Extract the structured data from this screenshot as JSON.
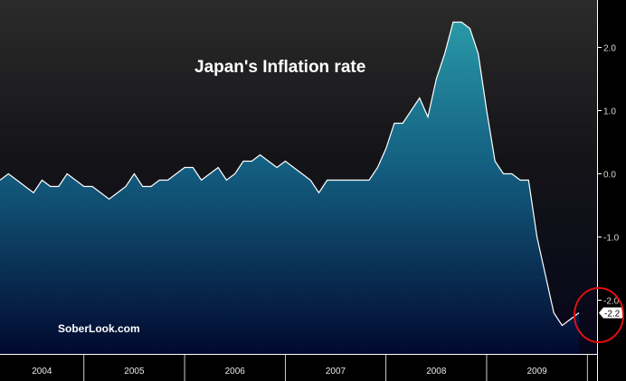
{
  "chart_data": {
    "type": "area",
    "title": "Japan's Inflation rate",
    "watermark": "SoberLook.com",
    "xlabel": "",
    "ylabel": "",
    "ylim": [
      -2.85,
      2.75
    ],
    "yticks": [
      {
        "value": 2.0,
        "label": "2.0"
      },
      {
        "value": 1.0,
        "label": "1.0"
      },
      {
        "value": 0.0,
        "label": "0.0"
      },
      {
        "value": -1.0,
        "label": "-1.0"
      },
      {
        "value": -2.0,
        "label": "-2.0"
      }
    ],
    "year_labels": [
      "2004",
      "2005",
      "2006",
      "2007",
      "2008",
      "2009"
    ],
    "last_value_label": "-2.2",
    "grid": false,
    "series": [
      {
        "values": [
          -0.1,
          0.0,
          -0.1,
          -0.2,
          -0.3,
          -0.1,
          -0.2,
          -0.2,
          0.0,
          -0.1,
          -0.2,
          -0.2,
          -0.3,
          -0.4,
          -0.3,
          -0.2,
          0.0,
          -0.2,
          -0.2,
          -0.1,
          -0.1,
          0.0,
          0.1,
          0.1,
          -0.1,
          0.0,
          0.1,
          -0.1,
          0.0,
          0.2,
          0.2,
          0.3,
          0.2,
          0.1,
          0.2,
          0.1,
          0.0,
          -0.1,
          -0.3,
          -0.1,
          -0.1,
          -0.1,
          -0.1,
          -0.1,
          -0.1,
          0.1,
          0.4,
          0.8,
          0.8,
          1.0,
          1.2,
          0.9,
          1.5,
          1.9,
          2.4,
          2.4,
          2.3,
          1.9,
          1.0,
          0.2,
          0.0,
          0.0,
          -0.1,
          -0.1,
          -1.0,
          -1.6,
          -2.2,
          -2.4,
          -2.3,
          -2.2
        ]
      }
    ],
    "colors": {
      "background_top": "#2b2b2b",
      "background_bottom": "#06061a",
      "area_top": "#2a9aa8",
      "area_bottom": "#020a30",
      "line": "#ffffff",
      "highlight_circle": "#e01010",
      "axis": "#ffffff"
    }
  }
}
